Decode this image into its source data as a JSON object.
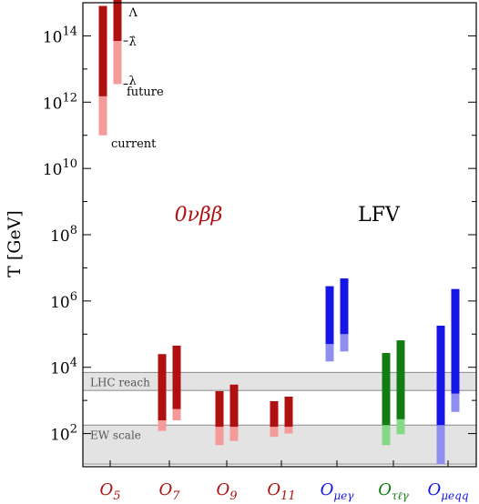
{
  "chart_data": {
    "type": "bar",
    "ylabel": "T [GeV]",
    "y_scale": "log",
    "ylim": [
      10,
      1000000000000000.0
    ],
    "ytick_labels": [
      {
        "value": 100,
        "base": "10",
        "exp": "2"
      },
      {
        "value": 10000,
        "base": "10",
        "exp": "4"
      },
      {
        "value": 1000000,
        "base": "10",
        "exp": "6"
      },
      {
        "value": 100000000,
        "base": "10",
        "exp": "8"
      },
      {
        "value": 10000000000,
        "base": "10",
        "exp": "10"
      },
      {
        "value": 1000000000000,
        "base": "10",
        "exp": "12"
      },
      {
        "value": 100000000000000,
        "base": "10",
        "exp": "14"
      }
    ],
    "categories": [
      {
        "base": "O",
        "sub": "5",
        "color": "#b01010"
      },
      {
        "base": "O",
        "sub": "7",
        "color": "#b01010"
      },
      {
        "base": "O",
        "sub": "9",
        "color": "#b01010"
      },
      {
        "base": "O",
        "sub": "11",
        "color": "#b01010"
      },
      {
        "base": "O",
        "sub": "μeγ",
        "color": "#1515e6"
      },
      {
        "base": "O",
        "sub": "τℓγ",
        "color": "#137d13"
      },
      {
        "base": "O",
        "sub": "μeqq",
        "color": "#1515e6"
      }
    ],
    "bands": [
      {
        "label": "LHC reach",
        "y0": 2000,
        "y1": 7000
      },
      {
        "label": "EW scale",
        "y0": 12,
        "y1": 180
      }
    ],
    "group_labels": [
      {
        "text": "0νββ",
        "color": "#b01010"
      },
      {
        "text": "LFV",
        "color": "#000000"
      }
    ],
    "annotations": [
      "Λ",
      "λ̂",
      "λ",
      "future",
      "current"
    ],
    "bars": [
      {
        "cat": 0,
        "slot": 0,
        "color": "#b01010",
        "light": "#f59a9a",
        "dark": [
          1500000000000.0,
          800000000000000.0
        ],
        "lightr": [
          100000000000.0,
          1500000000000.0
        ]
      },
      {
        "cat": 0,
        "slot": 1,
        "color": "#b01010",
        "light": "#f59a9a",
        "dark": [
          70000000000000.0,
          6000000000000000.0
        ],
        "lightr": [
          3500000000000.0,
          70000000000000.0
        ]
      },
      {
        "cat": 1,
        "slot": 0,
        "color": "#b01010",
        "light": "#f59a9a",
        "dark": [
          250,
          25000
        ],
        "lightr": [
          120,
          250
        ]
      },
      {
        "cat": 1,
        "slot": 1,
        "color": "#b01010",
        "light": "#f59a9a",
        "dark": [
          550,
          45000
        ],
        "lightr": [
          250,
          550
        ]
      },
      {
        "cat": 2,
        "slot": 0,
        "color": "#b01010",
        "light": "#f59a9a",
        "dark": [
          160,
          1900
        ],
        "lightr": [
          45,
          160
        ]
      },
      {
        "cat": 2,
        "slot": 1,
        "color": "#b01010",
        "light": "#f59a9a",
        "dark": [
          160,
          3000
        ],
        "lightr": [
          60,
          160
        ]
      },
      {
        "cat": 3,
        "slot": 0,
        "color": "#b01010",
        "light": "#f59a9a",
        "dark": [
          160,
          950
        ],
        "lightr": [
          80,
          160
        ]
      },
      {
        "cat": 3,
        "slot": 1,
        "color": "#b01010",
        "light": "#f59a9a",
        "dark": [
          160,
          1300
        ],
        "lightr": [
          100,
          160
        ]
      },
      {
        "cat": 4,
        "slot": 0,
        "color": "#1515e6",
        "light": "#8f8ff0",
        "dark": [
          50000,
          2800000
        ],
        "lightr": [
          15000,
          50000
        ]
      },
      {
        "cat": 4,
        "slot": 1,
        "color": "#1515e6",
        "light": "#8f8ff0",
        "dark": [
          100000,
          4800000
        ],
        "lightr": [
          30000,
          100000
        ]
      },
      {
        "cat": 5,
        "slot": 0,
        "color": "#137d13",
        "light": "#86d886",
        "dark": [
          180,
          27000
        ],
        "lightr": [
          45,
          180
        ]
      },
      {
        "cat": 5,
        "slot": 1,
        "color": "#137d13",
        "light": "#86d886",
        "dark": [
          270,
          65000
        ],
        "lightr": [
          95,
          270
        ]
      },
      {
        "cat": 6,
        "slot": 0,
        "color": "#1515e6",
        "light": "#8f8ff0",
        "dark": [
          180,
          180000
        ],
        "lightr": [
          12,
          180
        ]
      },
      {
        "cat": 6,
        "slot": 1,
        "color": "#1515e6",
        "light": "#8f8ff0",
        "dark": [
          1600,
          2300000
        ],
        "lightr": [
          450,
          1600
        ]
      }
    ]
  }
}
